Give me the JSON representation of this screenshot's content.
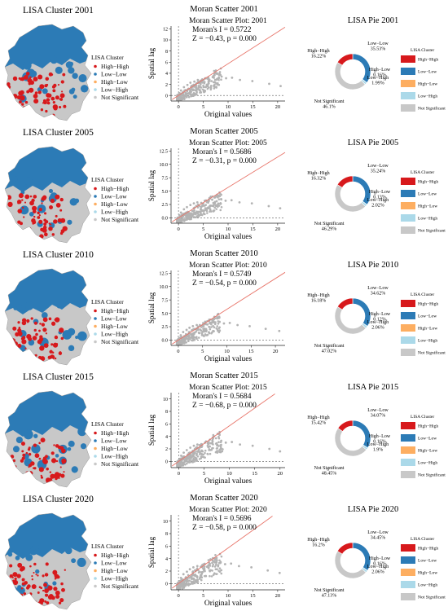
{
  "colors": {
    "high_high": "#d7191c",
    "low_low": "#2c7bb6",
    "high_low": "#fdae61",
    "low_high": "#abd9e9",
    "not_significant": "#c8c8c8",
    "scatter_point": "#b3b3b3",
    "regression_line": "#e8756a"
  },
  "chart_data": [
    {
      "year": "2001",
      "map": {
        "type": "choropleth",
        "title": "LISA Cluster 2001",
        "legend_title": "LISA Cluster",
        "legend": [
          "High−High",
          "Low−Low",
          "High−Low",
          "Low−High",
          "Not Significant"
        ]
      },
      "scatter": {
        "type": "scatter",
        "title": "Moran Scatter 2001",
        "inner_title": "Moran Scatter Plot: 2001",
        "stat_line1": "Moran's I = 0.5722",
        "stat_line2": "Z = −0.43, p = 0.000",
        "xlabel": "Original values",
        "ylabel": "Spatial lag",
        "xticks": [
          "0",
          "5",
          "10",
          "15",
          "20"
        ],
        "yticks": [
          "0",
          "2",
          "4",
          "6",
          "8",
          "10",
          "12"
        ],
        "xlim": [
          -1.5,
          21.5
        ],
        "ylim": [
          -1,
          12.5
        ],
        "slope": 0.5722,
        "points_x": [
          0.2,
          0.5,
          1.1,
          1.8,
          2.4,
          3.2,
          3.9,
          4.6,
          5.4,
          6.1,
          6.9,
          7.8,
          8.7,
          9.6,
          10.8,
          12.4,
          14.9,
          18.3,
          20.6
        ],
        "points_y": [
          0.4,
          0.9,
          1.5,
          1.9,
          2.3,
          2.5,
          2.8,
          2.7,
          3.1,
          2.9,
          3.3,
          3.0,
          3.4,
          3.1,
          3.2,
          2.8,
          2.6,
          2.1,
          1.7
        ]
      },
      "pie": {
        "type": "pie",
        "title": "LISA Pie 2001",
        "legend_title": "LISA Cluster",
        "legend": [
          "High−High",
          "Low−Low",
          "High−Low",
          "Low−High",
          "Not Significant"
        ],
        "slices": [
          {
            "label": "High−High",
            "value": 16.22,
            "text": "16.22%"
          },
          {
            "label": "Low−Low",
            "value": 35.53,
            "text": "35.53%"
          },
          {
            "label": "High−Low",
            "value": 0.16,
            "text": "0.16%"
          },
          {
            "label": "Low−High",
            "value": 1.99,
            "text": "1.99%"
          },
          {
            "label": "Not Significant",
            "value": 46.1,
            "text": "46.1%"
          }
        ]
      }
    },
    {
      "year": "2005",
      "map": {
        "type": "choropleth",
        "title": "LISA Cluster 2005",
        "legend_title": "LISA Cluster",
        "legend": [
          "High−High",
          "Low−Low",
          "High−Low",
          "Low−High",
          "Not Significant"
        ]
      },
      "scatter": {
        "type": "scatter",
        "title": "Moran Scatter 2005",
        "inner_title": "Moran Scatter Plot: 2005",
        "stat_line1": "Moran's I = 0.5686",
        "stat_line2": "Z = −0.31, p = 0.000",
        "xlabel": "Original values",
        "ylabel": "Spatial lag",
        "xticks": [
          "0",
          "5",
          "10",
          "15",
          "20"
        ],
        "yticks": [
          "0.0",
          "2.5",
          "5.0",
          "7.5",
          "10.0",
          "12.5"
        ],
        "xlim": [
          -1.5,
          21.5
        ],
        "ylim": [
          -1,
          13
        ],
        "slope": 0.5686,
        "points_x": [
          0.2,
          0.5,
          1.1,
          1.7,
          2.4,
          3.1,
          3.8,
          4.6,
          5.3,
          6.0,
          6.8,
          7.7,
          8.6,
          9.5,
          10.7,
          12.3,
          14.8,
          18.2,
          20.5
        ],
        "points_y": [
          0.5,
          1.0,
          1.6,
          2.0,
          2.4,
          2.7,
          2.9,
          2.8,
          3.2,
          3.0,
          3.4,
          3.1,
          3.5,
          3.2,
          3.3,
          2.9,
          2.7,
          2.2,
          1.8
        ]
      },
      "pie": {
        "type": "pie",
        "title": "LISA Pie 2005",
        "legend_title": "LISA Cluster",
        "legend": [
          "High−High",
          "Low−Low",
          "High−Low",
          "Low−High",
          "Not Significant"
        ],
        "slices": [
          {
            "label": "High−High",
            "value": 16.32,
            "text": "16.32%"
          },
          {
            "label": "Low−Low",
            "value": 35.24,
            "text": "35.24%"
          },
          {
            "label": "High−Low",
            "value": 0.13,
            "text": "0.13%"
          },
          {
            "label": "Low−High",
            "value": 2.02,
            "text": "2.02%"
          },
          {
            "label": "Not Significant",
            "value": 46.29,
            "text": "46.29%"
          }
        ]
      }
    },
    {
      "year": "2010",
      "map": {
        "type": "choropleth",
        "title": "LISA Cluster 2010",
        "legend_title": "LISA Cluster",
        "legend": [
          "High−High",
          "Low−Low",
          "High−Low",
          "Low−High",
          "Not Significant"
        ]
      },
      "scatter": {
        "type": "scatter",
        "title": "Moran Scatter 2010",
        "inner_title": "Moran Scatter Plot: 2010",
        "stat_line1": "Moran's I = 0.5749",
        "stat_line2": "Z = −0.54, p = 0.000",
        "xlabel": "Original values",
        "ylabel": "Spatial lag",
        "xticks": [
          "0",
          "5",
          "10",
          "15",
          "20"
        ],
        "yticks": [
          "0.0",
          "2.5",
          "5.0",
          "7.5",
          "10.0",
          "12.5"
        ],
        "xlim": [
          -1.5,
          22
        ],
        "ylim": [
          -1,
          13
        ],
        "slope": 0.5749,
        "points_x": [
          0.2,
          0.5,
          1.0,
          1.7,
          2.3,
          3.0,
          3.8,
          4.5,
          5.3,
          6.0,
          6.8,
          7.6,
          8.5,
          9.4,
          10.6,
          12.2,
          14.7,
          18.0,
          20.8
        ],
        "points_y": [
          0.4,
          0.9,
          1.5,
          1.9,
          2.3,
          2.6,
          2.8,
          2.7,
          3.1,
          2.9,
          3.3,
          3.0,
          3.4,
          3.1,
          3.2,
          2.8,
          2.6,
          2.1,
          1.7
        ]
      },
      "pie": {
        "type": "pie",
        "title": "LISA Pie 2010",
        "legend_title": "LISA Cluster",
        "legend": [
          "High−High",
          "Low−Low",
          "High−Low",
          "Low−High",
          "Not Significant"
        ],
        "slices": [
          {
            "label": "High−High",
            "value": 16.18,
            "text": "16.18%"
          },
          {
            "label": "Low−Low",
            "value": 34.62,
            "text": "34.62%"
          },
          {
            "label": "High−Low",
            "value": 0.12,
            "text": "0.12%"
          },
          {
            "label": "Low−High",
            "value": 2.06,
            "text": "2.06%"
          },
          {
            "label": "Not Significant",
            "value": 47.02,
            "text": "47.02%"
          }
        ]
      }
    },
    {
      "year": "2015",
      "map": {
        "type": "choropleth",
        "title": "LISA Cluster 2015",
        "legend_title": "LISA Cluster",
        "legend": [
          "High−High",
          "Low−Low",
          "High−Low",
          "Low−High",
          "Not Significant"
        ]
      },
      "scatter": {
        "type": "scatter",
        "title": "Moran Scatter 2015",
        "inner_title": "Moran Scatter Plot: 2015",
        "stat_line1": "Moran's I = 0.5684",
        "stat_line2": "Z = −0.68, p = 0.000",
        "xlabel": "Original values",
        "ylabel": "Spatial lag",
        "xticks": [
          "0",
          "5",
          "10",
          "15",
          "20"
        ],
        "yticks": [
          "0",
          "2",
          "4",
          "6",
          "8",
          "10"
        ],
        "xlim": [
          -1.5,
          21
        ],
        "ylim": [
          -1,
          11
        ],
        "slope": 0.5684,
        "points_x": [
          0.2,
          0.5,
          1.0,
          1.6,
          2.3,
          3.0,
          3.7,
          4.5,
          5.2,
          5.9,
          6.7,
          7.5,
          8.4,
          9.3,
          10.5,
          12.1,
          14.6,
          17.9,
          20.0
        ],
        "points_y": [
          0.4,
          0.9,
          1.4,
          1.8,
          2.2,
          2.5,
          2.7,
          2.6,
          3.0,
          2.8,
          3.2,
          2.9,
          3.3,
          3.0,
          3.1,
          2.7,
          2.5,
          2.0,
          1.6
        ]
      },
      "pie": {
        "type": "pie",
        "title": "LISA Pie 2015",
        "legend_title": "LISA Cluster",
        "legend": [
          "High−High",
          "Low−Low",
          "High−Low",
          "Low−High",
          "Not Significant"
        ],
        "slices": [
          {
            "label": "High−High",
            "value": 15.42,
            "text": "15.42%"
          },
          {
            "label": "Low−Low",
            "value": 34.07,
            "text": "34.07%"
          },
          {
            "label": "High−Low",
            "value": 0.16,
            "text": "0.16%"
          },
          {
            "label": "Low−High",
            "value": 1.9,
            "text": "1.9%"
          },
          {
            "label": "Not Significant",
            "value": 48.45,
            "text": "48.45%"
          }
        ]
      }
    },
    {
      "year": "2020",
      "map": {
        "type": "choropleth",
        "title": "LISA Cluster 2020",
        "legend_title": "LISA Cluster",
        "legend": [
          "High−High",
          "Low−Low",
          "High−Low",
          "Low−High",
          "Not Significant"
        ]
      },
      "scatter": {
        "type": "scatter",
        "title": "Moran Scatter 2020",
        "inner_title": "Moran Scatter Plot: 2020",
        "stat_line1": "Moran's I = 0.5696",
        "stat_line2": "Z = −0.58, p = 0.000",
        "xlabel": "Original values",
        "ylabel": "Spatial lag",
        "xticks": [
          "0",
          "5",
          "10",
          "15",
          "20"
        ],
        "yticks": [
          "0",
          "2",
          "4",
          "6",
          "8",
          "10"
        ],
        "xlim": [
          -1.5,
          21.5
        ],
        "ylim": [
          -1,
          11
        ],
        "slope": 0.5696,
        "points_x": [
          0.2,
          0.5,
          1.0,
          1.7,
          2.3,
          3.0,
          3.8,
          4.5,
          5.3,
          6.0,
          6.8,
          7.6,
          8.5,
          9.4,
          10.6,
          12.2,
          14.7,
          18.0,
          20.4
        ],
        "points_y": [
          0.4,
          0.9,
          1.5,
          1.9,
          2.3,
          2.6,
          2.8,
          2.7,
          3.1,
          2.9,
          3.3,
          3.0,
          3.4,
          3.1,
          3.2,
          2.8,
          2.6,
          2.1,
          1.7
        ]
      },
      "pie": {
        "type": "pie",
        "title": "LISA Pie 2020",
        "legend_title": "LISA Cluster",
        "legend": [
          "High−High",
          "Low−Low",
          "High−Low",
          "Low−High",
          "Not Significant"
        ],
        "slices": [
          {
            "label": "High−High",
            "value": 16.2,
            "text": "16.2%"
          },
          {
            "label": "Low−Low",
            "value": 34.45,
            "text": "34.45%"
          },
          {
            "label": "High−Low",
            "value": 0.16,
            "text": "0.16%"
          },
          {
            "label": "Low−High",
            "value": 2.06,
            "text": "2.06%"
          },
          {
            "label": "Not Significant",
            "value": 47.13,
            "text": "47.13%"
          }
        ]
      }
    }
  ]
}
